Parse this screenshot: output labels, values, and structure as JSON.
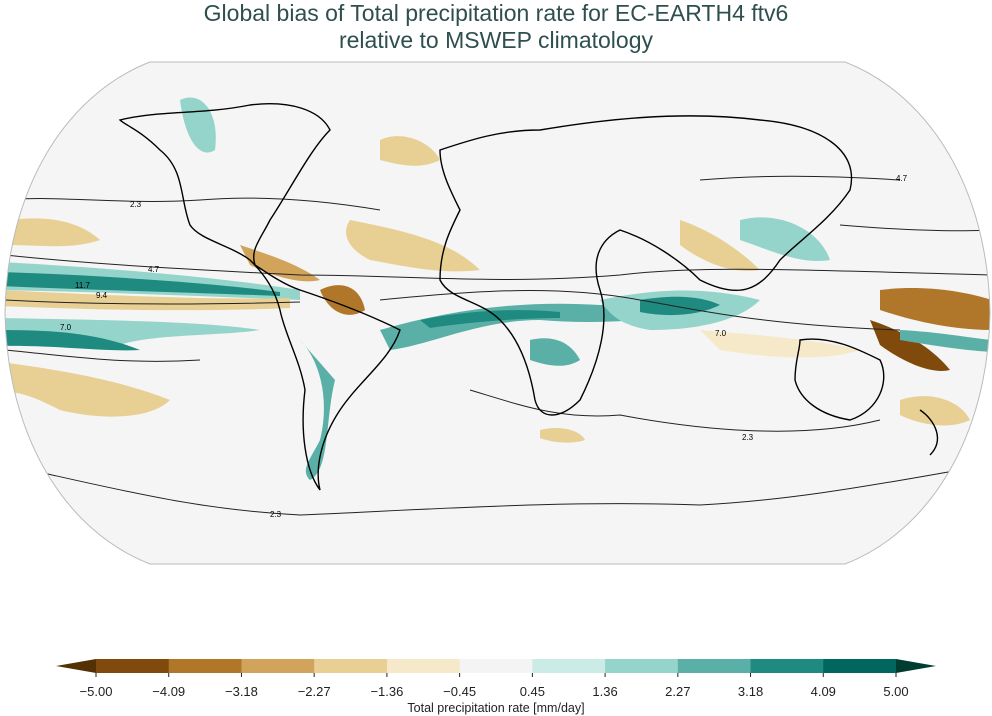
{
  "title_line1": "Global bias of Total precipitation rate for EC-EARTH4 ftv6",
  "title_line2": "relative to MSWEP climatology",
  "colorbar": {
    "label": "Total precipitation rate [mm/day]",
    "ticks": [
      "−5.00",
      "−4.09",
      "−3.18",
      "−2.27",
      "−1.36",
      "−0.45",
      "0.45",
      "1.36",
      "2.27",
      "3.18",
      "4.09",
      "5.00"
    ],
    "colors": [
      "#7f4a0c",
      "#b0762a",
      "#d2a35a",
      "#e8cf94",
      "#f6e9c9",
      "#f4f4f4",
      "#cbece6",
      "#95d4ca",
      "#5ab0a6",
      "#1f8a80",
      "#01665e"
    ],
    "extend_low_color": "#543005",
    "extend_high_color": "#003c30",
    "extend": "both"
  },
  "contour_labels": [
    "2.3",
    "4.7",
    "7.0",
    "9.4",
    "11.7"
  ],
  "map": {
    "projection": "Robinson",
    "ocean_land_fill": "#f4f5f4",
    "coastline_color": "#000000"
  }
}
